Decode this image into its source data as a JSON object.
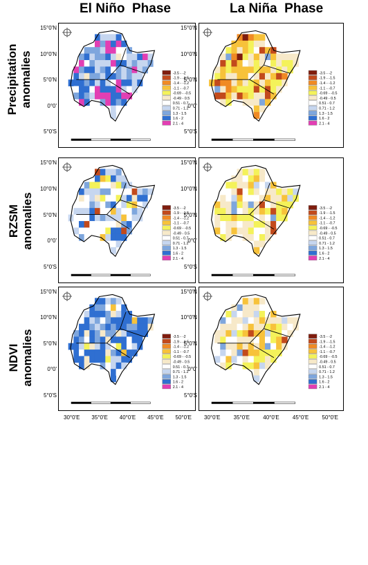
{
  "columns": [
    "El Niño  Phase",
    "La Niña  Phase"
  ],
  "rows": [
    {
      "line1": "Precipitation",
      "line2": "anomalies"
    },
    {
      "line1": "RZSM",
      "line2": "anomalies"
    },
    {
      "line1": "NDVI",
      "line2": "anomalies"
    }
  ],
  "lat_labels": [
    "15°0'N",
    "10°0'N",
    "5°0'N",
    "0°0'",
    "5°0'S"
  ],
  "lon_labels": [
    "30°0'E",
    "35°0'E",
    "40°0'E",
    "45°0'E",
    "50°0'E"
  ],
  "legend": [
    {
      "label": "-3.5 - -2",
      "color": "#7f1d0e"
    },
    {
      "label": "-1.9 - -1.5",
      "color": "#c24a1c"
    },
    {
      "label": "-1.4 - -1.2",
      "color": "#f08a24"
    },
    {
      "label": "-1.1 - -0.7",
      "color": "#f7c23a"
    },
    {
      "label": "-0.69 - -0.5",
      "color": "#f4f25a"
    },
    {
      "label": "-0.49 - 0.5",
      "color": "#f7e9c9"
    },
    {
      "label": "0.51 - 0.7",
      "color": "#ffffff"
    },
    {
      "label": "0.71 - 1.2",
      "color": "#c6d6ef"
    },
    {
      "label": "1.3 - 1.5",
      "color": "#7ea6dd"
    },
    {
      "label": "1.6 - 2",
      "color": "#2f6fd1"
    },
    {
      "label": "2.1 - 4",
      "color": "#e23fb3"
    }
  ],
  "panels": [
    {
      "id": "precip-elnino",
      "palette": "wet"
    },
    {
      "id": "precip-lanina",
      "palette": "dry"
    },
    {
      "id": "rzsm-elnino",
      "palette": "mixwet"
    },
    {
      "id": "rzsm-lanina",
      "palette": "mixdry"
    },
    {
      "id": "ndvi-elnino",
      "palette": "verywet"
    },
    {
      "id": "ndvi-lanina",
      "palette": "lightdry"
    }
  ]
}
